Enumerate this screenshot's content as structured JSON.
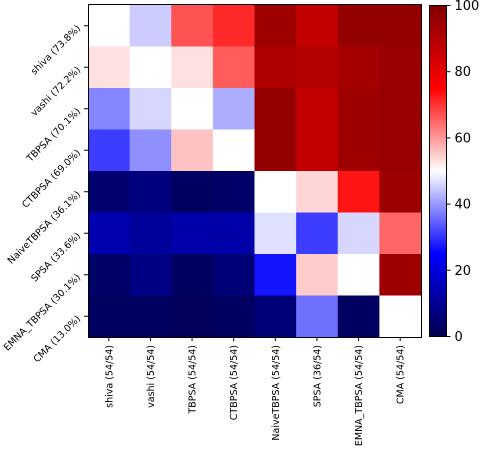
{
  "chart_data": {
    "type": "heatmap",
    "row_labels": [
      "shiva (73.8%)",
      "vashi (72.2%)",
      "TBPSA (70.1%)",
      "CTBPSA (69.0%)",
      "NaiveTBPSA (36.1%)",
      "SPSA (33.6%)",
      "EMNA_TBPSA (30.1%)",
      "CMA (13.0%)"
    ],
    "col_labels": [
      "shiva (54/54)",
      "vashi (54/54)",
      "TBPSA (54/54)",
      "CTBPSA (54/54)",
      "NaiveTBPSA (54/54)",
      "SPSA (36/54)",
      "EMNA_TBPSA (54/54)",
      "CMA (54/54)"
    ],
    "values": [
      [
        50,
        45,
        67,
        71,
        94,
        87,
        96,
        96
      ],
      [
        53,
        50,
        53,
        66,
        91,
        90,
        93,
        95
      ],
      [
        38,
        46,
        50,
        42,
        96,
        87,
        94,
        95
      ],
      [
        31,
        39,
        56,
        50,
        96,
        87,
        94,
        95
      ],
      [
        5,
        7,
        3,
        4,
        50,
        54,
        73,
        94
      ],
      [
        14,
        11,
        13,
        13,
        47,
        31,
        46,
        65
      ],
      [
        4,
        8,
        3,
        6,
        27,
        55,
        50,
        94
      ],
      [
        3,
        3,
        2,
        3,
        6,
        36,
        3,
        50
      ]
    ],
    "colormap": "seismic",
    "colorbar": {
      "min": 0,
      "max": 100,
      "ticks": [
        "0",
        "20",
        "40",
        "60",
        "80",
        "100"
      ]
    }
  }
}
